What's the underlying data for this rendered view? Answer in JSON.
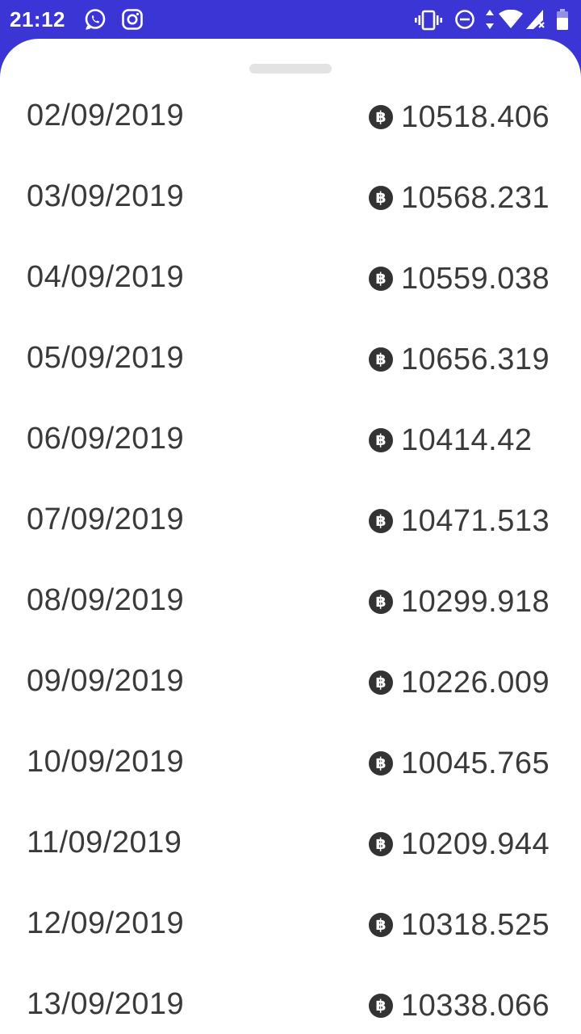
{
  "status_bar": {
    "time": "21:12",
    "bg_color": "#3b35d6",
    "left_icons": [
      "whatsapp-icon",
      "instagram-icon"
    ],
    "right_icons": [
      "vibrate-icon",
      "do-not-disturb-icon",
      "data-arrows-icon",
      "wifi-icon",
      "signal-no-sim-icon",
      "battery-icon"
    ]
  },
  "sheet": {
    "currency_icon": "bitcoin-icon",
    "currency_symbol": "฿",
    "rows": [
      {
        "date": "02/09/2019",
        "value": "10518.406"
      },
      {
        "date": "03/09/2019",
        "value": "10568.231"
      },
      {
        "date": "04/09/2019",
        "value": "10559.038"
      },
      {
        "date": "05/09/2019",
        "value": "10656.319"
      },
      {
        "date": "06/09/2019",
        "value": "10414.42"
      },
      {
        "date": "07/09/2019",
        "value": "10471.513"
      },
      {
        "date": "08/09/2019",
        "value": "10299.918"
      },
      {
        "date": "09/09/2019",
        "value": "10226.009"
      },
      {
        "date": "10/09/2019",
        "value": "10045.765"
      },
      {
        "date": "11/09/2019",
        "value": "10209.944"
      },
      {
        "date": "12/09/2019",
        "value": "10318.525"
      },
      {
        "date": "13/09/2019",
        "value": "10338.066"
      }
    ]
  }
}
